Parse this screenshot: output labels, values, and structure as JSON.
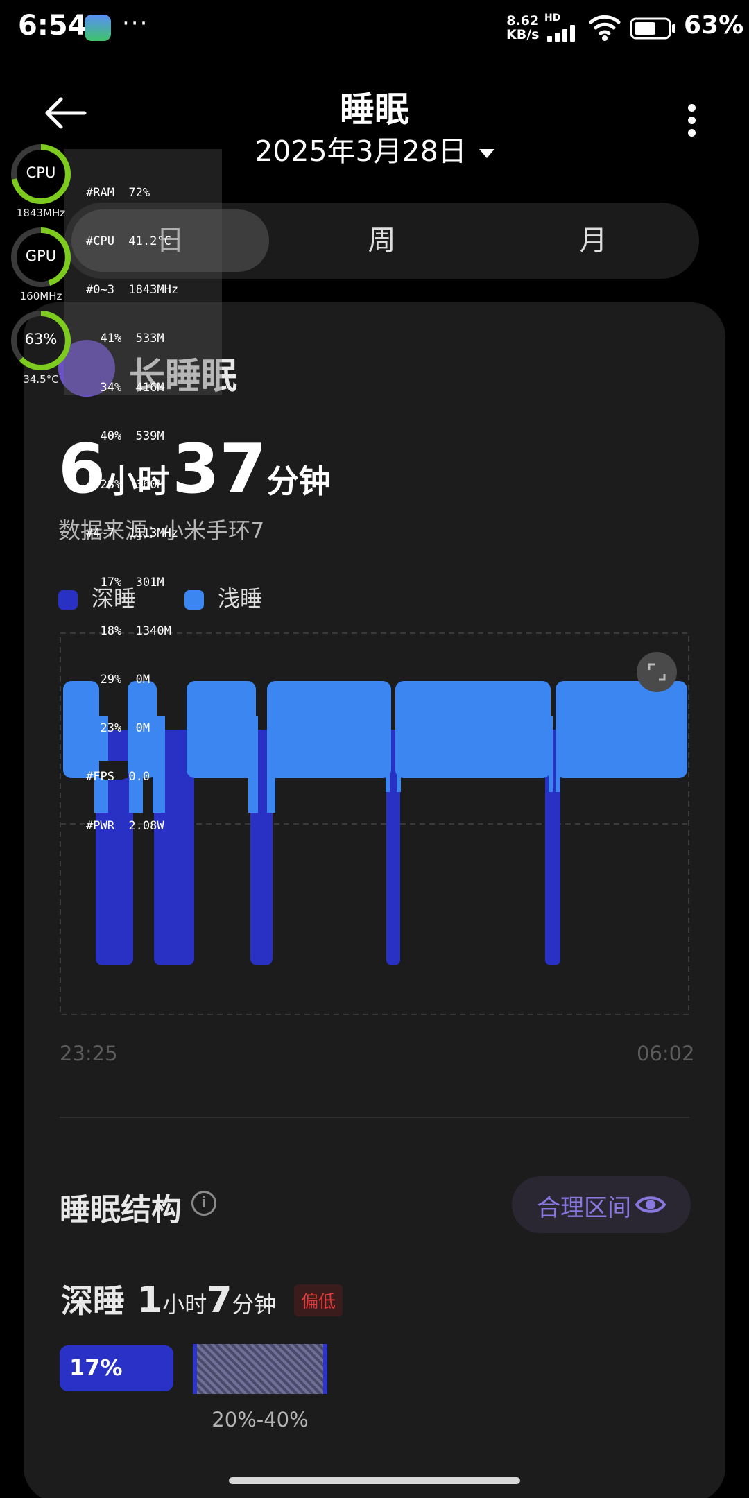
{
  "status_bar": {
    "time": "6:54",
    "more": "···",
    "net_speed_value": "8.62",
    "net_speed_unit": "KB/s",
    "network_tag": "HD",
    "battery": "63%"
  },
  "header": {
    "title": "睡眠",
    "date": "2025年3月28日"
  },
  "tabs": [
    {
      "label": "日",
      "active": true
    },
    {
      "label": "周",
      "active": false
    },
    {
      "label": "月",
      "active": false
    }
  ],
  "card": {
    "title": "长睡眠",
    "duration": {
      "hours": "6",
      "hours_unit": "小时",
      "minutes": "37",
      "minutes_unit": "分钟"
    },
    "source": "数据来源: 小米手环7",
    "legend": [
      {
        "label": "深睡",
        "color": "#2930c4"
      },
      {
        "label": "浅睡",
        "color": "#3c86f2"
      }
    ],
    "time_start": "23:25",
    "time_end": "06:02"
  },
  "structure": {
    "title": "睡眠结构",
    "range_button": "合理区间",
    "deep": {
      "name": "深睡",
      "hours": "1",
      "hours_unit": "小时",
      "minutes": "7",
      "minutes_unit": "分钟",
      "badge": "偏低",
      "percent": "17%",
      "reference": "20%-40%"
    }
  },
  "perf_overlay": {
    "gauges": [
      {
        "label": "CPU",
        "sub": "1843MHz",
        "level": 0.72
      },
      {
        "label": "GPU",
        "sub": "160MHz",
        "level": 0.45
      },
      {
        "label": "63%",
        "sub": "34.5°C",
        "level": 0.63
      }
    ],
    "lines": [
      "#RAM  72%",
      "#CPU  41.2°C",
      "#0~3  1843MHz",
      "  41%  533M",
      "  34%  416M",
      "  40%  539M",
      "  28%  360M",
      "#4~7  1113MHz",
      "  17%  301M",
      "  18%  1340M",
      "  29%  0M",
      "  23%  0M",
      "#FPS  0.0",
      "#PWR  2.08W"
    ]
  },
  "colors": {
    "deep_sleep": "#2930c4",
    "light_sleep": "#3c86f2",
    "accent": "#8878e0",
    "warning": "#e03a3a"
  }
}
